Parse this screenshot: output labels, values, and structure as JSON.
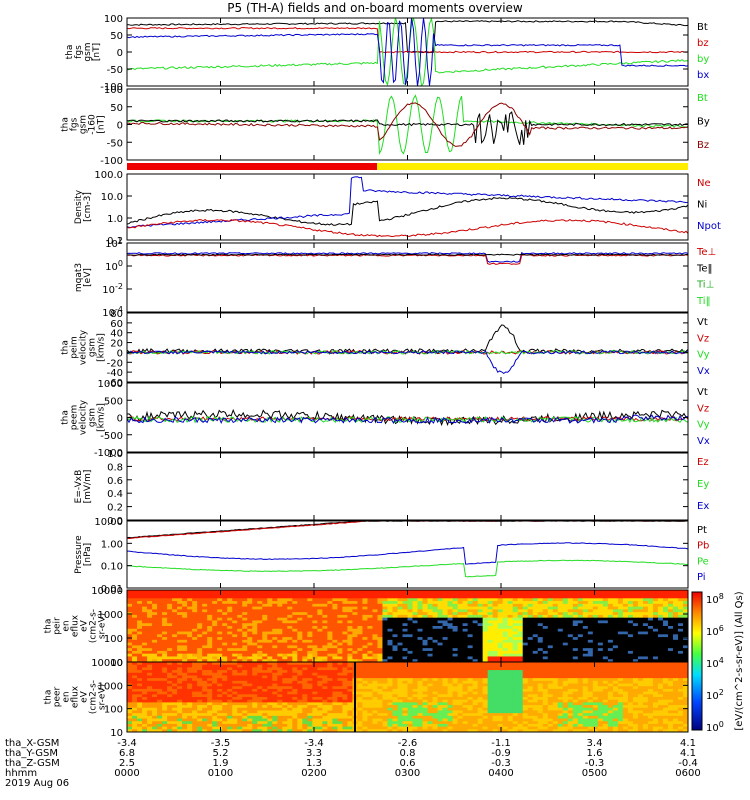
{
  "title": "P5 (TH-A) fields and on-board moments overview",
  "date": "2019 Aug 06",
  "chart_data": [
    {
      "type": "line",
      "ylabel": "tha\nfgs\ngsm\n[nT]",
      "yticks": [
        "100",
        "50",
        "0",
        "-50",
        "-100"
      ],
      "ylim": [
        -100,
        100
      ],
      "legend": [
        {
          "name": "Bt",
          "color": "#000000"
        },
        {
          "name": "bz",
          "color": "#cc0000"
        },
        {
          "name": "by",
          "color": "#22dd22"
        },
        {
          "name": "bx",
          "color": "#0000cc"
        }
      ]
    },
    {
      "type": "line",
      "ylabel": "tha\nfgs\ngsm\n-160\n[nT]",
      "yticks": [
        "100",
        "50",
        "0",
        "-50",
        "-100"
      ],
      "ylim": [
        -100,
        100
      ],
      "legend": [
        {
          "name": "Bt",
          "color": "#22dd22"
        },
        {
          "name": "By",
          "color": "#000000"
        },
        {
          "name": "Bz",
          "color": "#8b0000"
        }
      ]
    },
    {
      "type": "line",
      "ylabel": "Density\n[cm-3]",
      "yticks": [
        "100.0",
        "10.0",
        "1.0",
        "0.1"
      ],
      "log": true,
      "legend": [
        {
          "name": "Ne",
          "color": "#cc0000"
        },
        {
          "name": "Ni",
          "color": "#000000"
        },
        {
          "name": "Npot",
          "color": "#0000cc"
        }
      ]
    },
    {
      "type": "line",
      "ylabel": "mqat3\n[eV]",
      "yticks": [
        "10^2",
        "10^0",
        "10^-2",
        "10^-4"
      ],
      "log": true,
      "legend": [
        {
          "name": "Te⊥",
          "color": "#cc0000"
        },
        {
          "name": "Te‖",
          "color": "#000000"
        },
        {
          "name": "Ti⊥",
          "color": "#22aa22"
        },
        {
          "name": "Ti‖",
          "color": "#22dd22"
        }
      ]
    },
    {
      "type": "line",
      "ylabel": "tha\npeim\nvelocity\ngsm\n[km/s]",
      "yticks": [
        "80",
        "60",
        "40",
        "20",
        "0",
        "-20",
        "-40",
        "-60"
      ],
      "ylim": [
        -60,
        80
      ],
      "legend": [
        {
          "name": "Vt",
          "color": "#000000"
        },
        {
          "name": "Vz",
          "color": "#cc0000"
        },
        {
          "name": "Vy",
          "color": "#22dd22"
        },
        {
          "name": "Vx",
          "color": "#0000cc"
        }
      ]
    },
    {
      "type": "line",
      "ylabel": "tha\npeem\nvelocity\ngsm\n[km/s]",
      "yticks": [
        "1000",
        "500",
        "0",
        "-500",
        "-1000"
      ],
      "ylim": [
        -1000,
        1000
      ],
      "legend": [
        {
          "name": "Vt",
          "color": "#000000"
        },
        {
          "name": "Vz",
          "color": "#cc0000"
        },
        {
          "name": "Vy",
          "color": "#22dd22"
        },
        {
          "name": "Vx",
          "color": "#0000cc"
        }
      ]
    },
    {
      "type": "line",
      "ylabel": "E=-VxB\n[mV/m]",
      "yticks": [
        "1.0",
        "0.8",
        "0.6",
        "0.4",
        "0.2",
        "0.0"
      ],
      "ylim": [
        0,
        1
      ],
      "legend": [
        {
          "name": "Ez",
          "color": "#cc0000"
        },
        {
          "name": "Ey",
          "color": "#22dd22"
        },
        {
          "name": "Ex",
          "color": "#0000cc"
        }
      ]
    },
    {
      "type": "line",
      "ylabel": "Pressure\n[nPa]",
      "yticks": [
        "10.00",
        "1.00",
        "0.10",
        "0.01"
      ],
      "log": true,
      "legend": [
        {
          "name": "Pt",
          "color": "#000000"
        },
        {
          "name": "Pb",
          "color": "#cc0000"
        },
        {
          "name": "Pe",
          "color": "#22dd22"
        },
        {
          "name": "Pi",
          "color": "#0000cc"
        }
      ]
    },
    {
      "type": "heatmap",
      "ylabel": "tha\npeir\nen\neflux\neV\n(cm2-s-\nsr-eV)",
      "yticks": [
        "10000",
        "1000",
        "100",
        "10"
      ],
      "log": true
    },
    {
      "type": "heatmap",
      "ylabel": "tha\npeer\nen\neflux\neV\n(cm2-s-\nsr-eV)",
      "yticks": [
        "10000",
        "1000",
        "100",
        "10"
      ],
      "log": true
    }
  ],
  "colorbar": {
    "label": "[eV/(cm^2-s-sr-eV)] (All Qs)",
    "ticks": [
      "10^8",
      "10^6",
      "10^4",
      "10^2",
      "10^0"
    ]
  },
  "xaxis": {
    "labels": [
      "tha_X-GSM",
      "tha_Y-GSM",
      "tha_Z-GSM",
      "hhmm"
    ],
    "columns": [
      [
        "-3.4",
        "6.8",
        "2.5",
        "0000"
      ],
      [
        "-3.5",
        "5.2",
        "1.9",
        "0100"
      ],
      [
        "-3.4",
        "3.3",
        "1.3",
        "0200"
      ],
      [
        "-2.6",
        "0.8",
        "0.6",
        "0300"
      ],
      [
        "-1.1",
        "-0.9",
        "-0.3",
        "0400"
      ],
      [
        "3.4",
        "1.6",
        "-0.3",
        "0500"
      ],
      [
        "4.1",
        "4.1",
        "-0.4",
        "0600"
      ]
    ]
  }
}
